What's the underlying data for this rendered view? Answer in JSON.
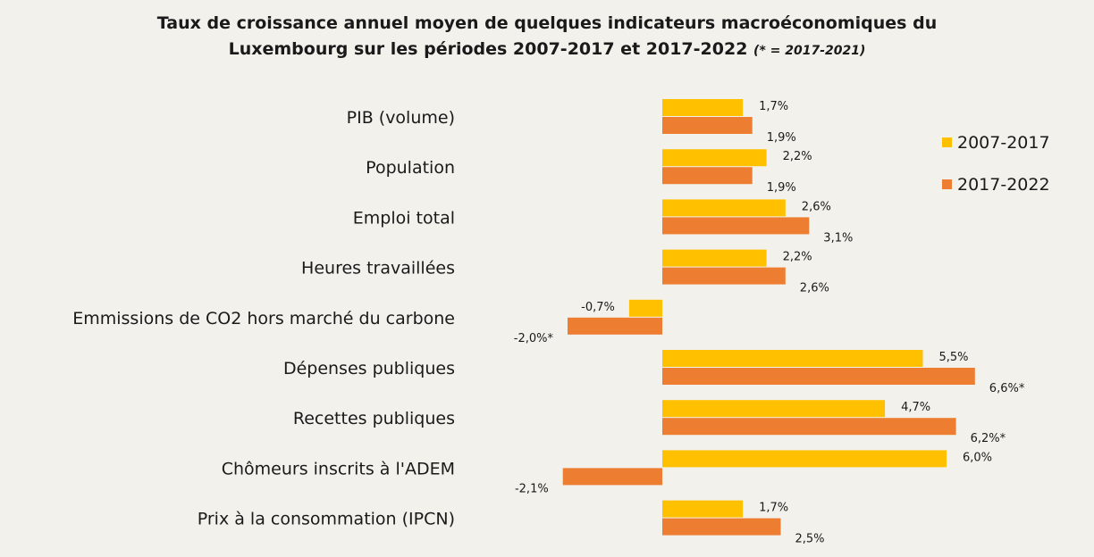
{
  "chart_data": {
    "type": "bar",
    "orientation": "horizontal",
    "title_line1": "Taux de croissance annuel moyen de quelques indicateurs macroéconomiques du",
    "title_line2": "Luxembourg sur les périodes 2007-2017 et 2017-2022",
    "title_note": "(* = 2017-2021)",
    "categories": [
      "PIB (volume)",
      "Population",
      "Emploi total",
      "Heures travaillées",
      "Emmissions de CO2 hors marché du carbone",
      "Dépenses publiques",
      "Recettes publiques",
      "Chômeurs inscrits à l'ADEM",
      "Prix à la consommation (IPCN)"
    ],
    "series": [
      {
        "name": "2007-2017",
        "color": "#ffc000",
        "values": [
          1.7,
          2.2,
          2.6,
          2.2,
          -0.7,
          5.5,
          4.7,
          6.0,
          1.7
        ],
        "labels": [
          "1,7%",
          "2,2%",
          "2,6%",
          "2,2%",
          "-0,7%",
          "5,5%",
          "4,7%",
          "6,0%",
          "1,7%"
        ]
      },
      {
        "name": "2017-2022",
        "color": "#ed7d31",
        "values": [
          1.9,
          1.9,
          3.1,
          2.6,
          -2.0,
          6.6,
          6.2,
          -2.1,
          2.5
        ],
        "labels": [
          "1,9%",
          "1,9%",
          "3,1%",
          "2,6%",
          "-2,0%*",
          "6,6%*",
          "6,2%*",
          "-2,1%",
          "2,5%"
        ]
      }
    ],
    "legend": "right",
    "unit": "%"
  }
}
